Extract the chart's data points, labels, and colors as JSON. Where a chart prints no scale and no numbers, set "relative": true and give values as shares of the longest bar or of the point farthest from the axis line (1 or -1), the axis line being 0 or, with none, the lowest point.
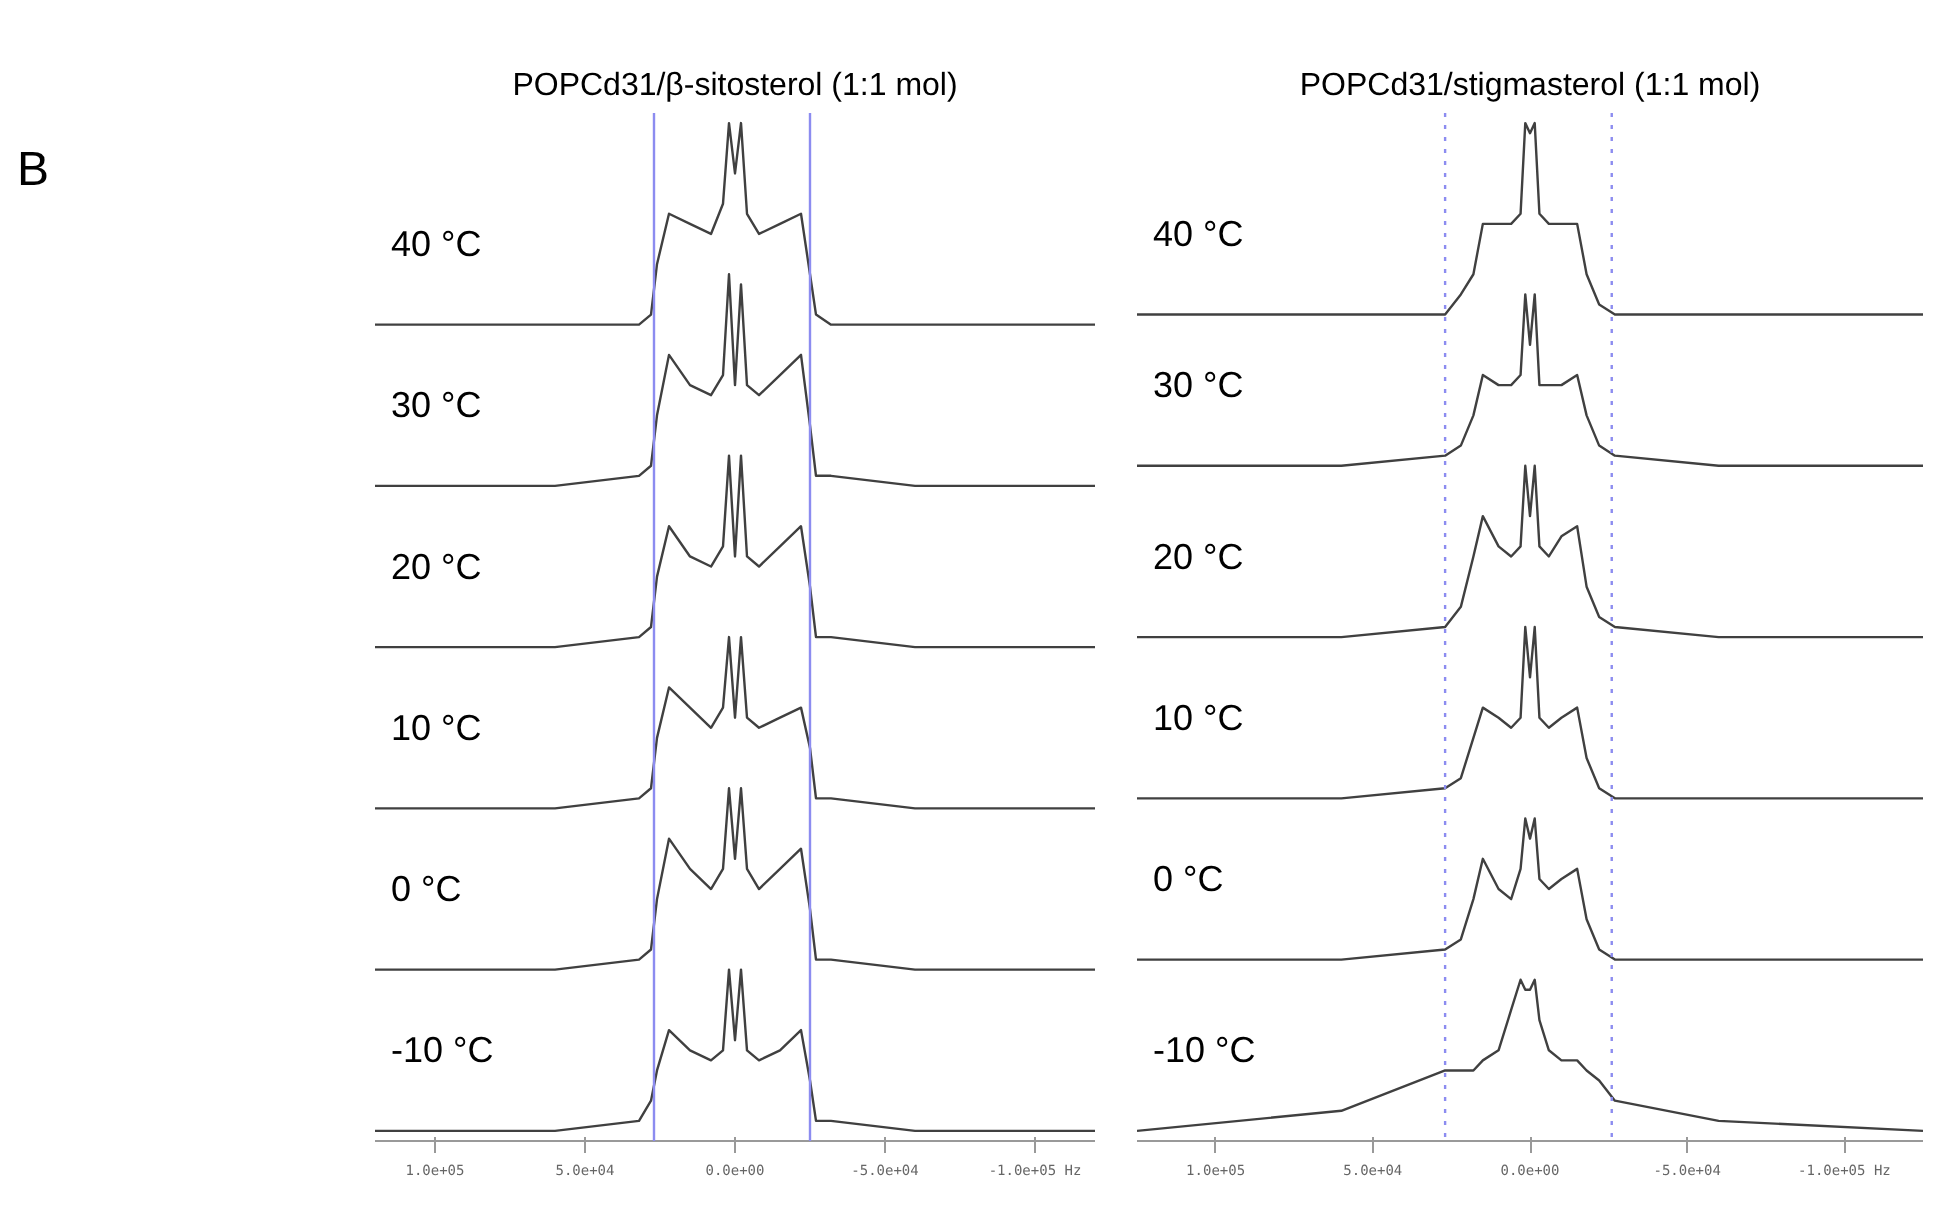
{
  "chart_data": [
    {
      "type": "line",
      "title": "POPCd31/β-sitosterol (1:1 mol)",
      "annotations": [
        "B"
      ],
      "relative": true,
      "grid": false,
      "tick_labels": "x",
      "line_style": "solid",
      "xlim": [
        120000,
        -120000
      ],
      "xticks": [
        {
          "value": 100000,
          "label": "1.0e+05"
        },
        {
          "value": 50000,
          "label": "5.0e+04"
        },
        {
          "value": 0,
          "label": "0.0e+00"
        },
        {
          "value": -50000,
          "label": "-5.0e+04"
        },
        {
          "value": -100000,
          "label": "-1.0e+05 Hz"
        }
      ],
      "ref_lines": [
        {
          "axis": "x",
          "value": 27000,
          "color": "#8c8cf0",
          "line_style": "solid"
        },
        {
          "axis": "x",
          "value": -25000,
          "color": "#8c8cf0",
          "line_style": "solid"
        }
      ],
      "x": [
        120000,
        60000,
        32000,
        28000,
        26000,
        22000,
        15000,
        8000,
        4000,
        2000,
        0,
        -2000,
        -4000,
        -8000,
        -15000,
        -22000,
        -25000,
        -27000,
        -32000,
        -60000,
        -120000
      ],
      "series": [
        {
          "name": "40 °C",
          "color": "#404040",
          "values": [
            0.8,
            0.8,
            0.8,
            0.81,
            0.86,
            0.91,
            0.9,
            0.89,
            0.92,
            1.0,
            0.95,
            1.0,
            0.91,
            0.89,
            0.9,
            0.91,
            0.85,
            0.81,
            0.8,
            0.8,
            0.8
          ]
        },
        {
          "name": "30 °C",
          "color": "#404040",
          "values": [
            0.64,
            0.64,
            0.65,
            0.66,
            0.71,
            0.77,
            0.74,
            0.73,
            0.75,
            0.85,
            0.74,
            0.84,
            0.74,
            0.73,
            0.75,
            0.77,
            0.7,
            0.65,
            0.65,
            0.64,
            0.64
          ]
        },
        {
          "name": "20 °C",
          "color": "#404040",
          "values": [
            0.48,
            0.48,
            0.49,
            0.5,
            0.55,
            0.6,
            0.57,
            0.56,
            0.58,
            0.67,
            0.57,
            0.67,
            0.57,
            0.56,
            0.58,
            0.6,
            0.54,
            0.49,
            0.49,
            0.48,
            0.48
          ]
        },
        {
          "name": "10 °C",
          "color": "#404040",
          "values": [
            0.32,
            0.32,
            0.33,
            0.34,
            0.39,
            0.44,
            0.42,
            0.4,
            0.42,
            0.49,
            0.41,
            0.49,
            0.41,
            0.4,
            0.41,
            0.42,
            0.38,
            0.33,
            0.33,
            0.32,
            0.32
          ]
        },
        {
          "name": "0 °C",
          "color": "#404040",
          "values": [
            0.16,
            0.16,
            0.17,
            0.18,
            0.23,
            0.29,
            0.26,
            0.24,
            0.26,
            0.34,
            0.27,
            0.34,
            0.26,
            0.24,
            0.26,
            0.28,
            0.22,
            0.17,
            0.17,
            0.16,
            0.16
          ]
        },
        {
          "name": "-10 °C",
          "color": "#404040",
          "values": [
            0.0,
            0.0,
            0.01,
            0.03,
            0.06,
            0.1,
            0.08,
            0.07,
            0.08,
            0.16,
            0.09,
            0.16,
            0.08,
            0.07,
            0.08,
            0.1,
            0.05,
            0.01,
            0.01,
            0.0,
            0.0
          ]
        }
      ]
    },
    {
      "type": "line",
      "title": "POPCd31/stigmasterol (1:1 mol)",
      "relative": true,
      "grid": false,
      "tick_labels": "x",
      "line_style": "solid",
      "xlim": [
        125000,
        -125000
      ],
      "xticks": [
        {
          "value": 100000,
          "label": "1.0e+05"
        },
        {
          "value": 50000,
          "label": "5.0e+04"
        },
        {
          "value": 0,
          "label": "0.0e+00"
        },
        {
          "value": -50000,
          "label": "-5.0e+04"
        },
        {
          "value": -100000,
          "label": "-1.0e+05 Hz"
        }
      ],
      "ref_lines": [
        {
          "axis": "x",
          "value": 27000,
          "color": "#8c8cf0",
          "line_style": "dotted"
        },
        {
          "axis": "x",
          "value": -26000,
          "color": "#8c8cf0",
          "line_style": "dotted"
        }
      ],
      "x": [
        125000,
        60000,
        27000,
        22000,
        18000,
        15000,
        10000,
        6000,
        3000,
        1500,
        0,
        -1500,
        -3000,
        -6000,
        -10000,
        -15000,
        -18000,
        -22000,
        -27000,
        -60000,
        -125000
      ],
      "series": [
        {
          "name": "40 °C",
          "color": "#404040",
          "values": [
            0.81,
            0.81,
            0.81,
            0.83,
            0.85,
            0.9,
            0.9,
            0.9,
            0.91,
            1.0,
            0.99,
            1.0,
            0.91,
            0.9,
            0.9,
            0.9,
            0.85,
            0.82,
            0.81,
            0.81,
            0.81
          ]
        },
        {
          "name": "30 °C",
          "color": "#404040",
          "values": [
            0.66,
            0.66,
            0.67,
            0.68,
            0.71,
            0.75,
            0.74,
            0.74,
            0.75,
            0.83,
            0.78,
            0.83,
            0.74,
            0.74,
            0.74,
            0.75,
            0.71,
            0.68,
            0.67,
            0.66,
            0.66
          ]
        },
        {
          "name": "20 °C",
          "color": "#404040",
          "values": [
            0.49,
            0.49,
            0.5,
            0.52,
            0.57,
            0.61,
            0.58,
            0.57,
            0.58,
            0.66,
            0.61,
            0.66,
            0.58,
            0.57,
            0.59,
            0.6,
            0.54,
            0.51,
            0.5,
            0.49,
            0.49
          ]
        },
        {
          "name": "10 °C",
          "color": "#404040",
          "values": [
            0.33,
            0.33,
            0.34,
            0.35,
            0.39,
            0.42,
            0.41,
            0.4,
            0.41,
            0.5,
            0.45,
            0.5,
            0.41,
            0.4,
            0.41,
            0.42,
            0.37,
            0.34,
            0.33,
            0.33,
            0.33
          ]
        },
        {
          "name": "0 °C",
          "color": "#404040",
          "values": [
            0.17,
            0.17,
            0.18,
            0.19,
            0.23,
            0.27,
            0.24,
            0.23,
            0.26,
            0.31,
            0.29,
            0.31,
            0.25,
            0.24,
            0.25,
            0.26,
            0.21,
            0.18,
            0.17,
            0.17,
            0.17
          ]
        },
        {
          "name": "-10 °C",
          "color": "#404040",
          "values": [
            0.0,
            0.02,
            0.06,
            0.06,
            0.06,
            0.07,
            0.08,
            0.12,
            0.15,
            0.14,
            0.14,
            0.15,
            0.11,
            0.08,
            0.07,
            0.07,
            0.06,
            0.05,
            0.03,
            0.01,
            0.0
          ]
        }
      ]
    }
  ]
}
